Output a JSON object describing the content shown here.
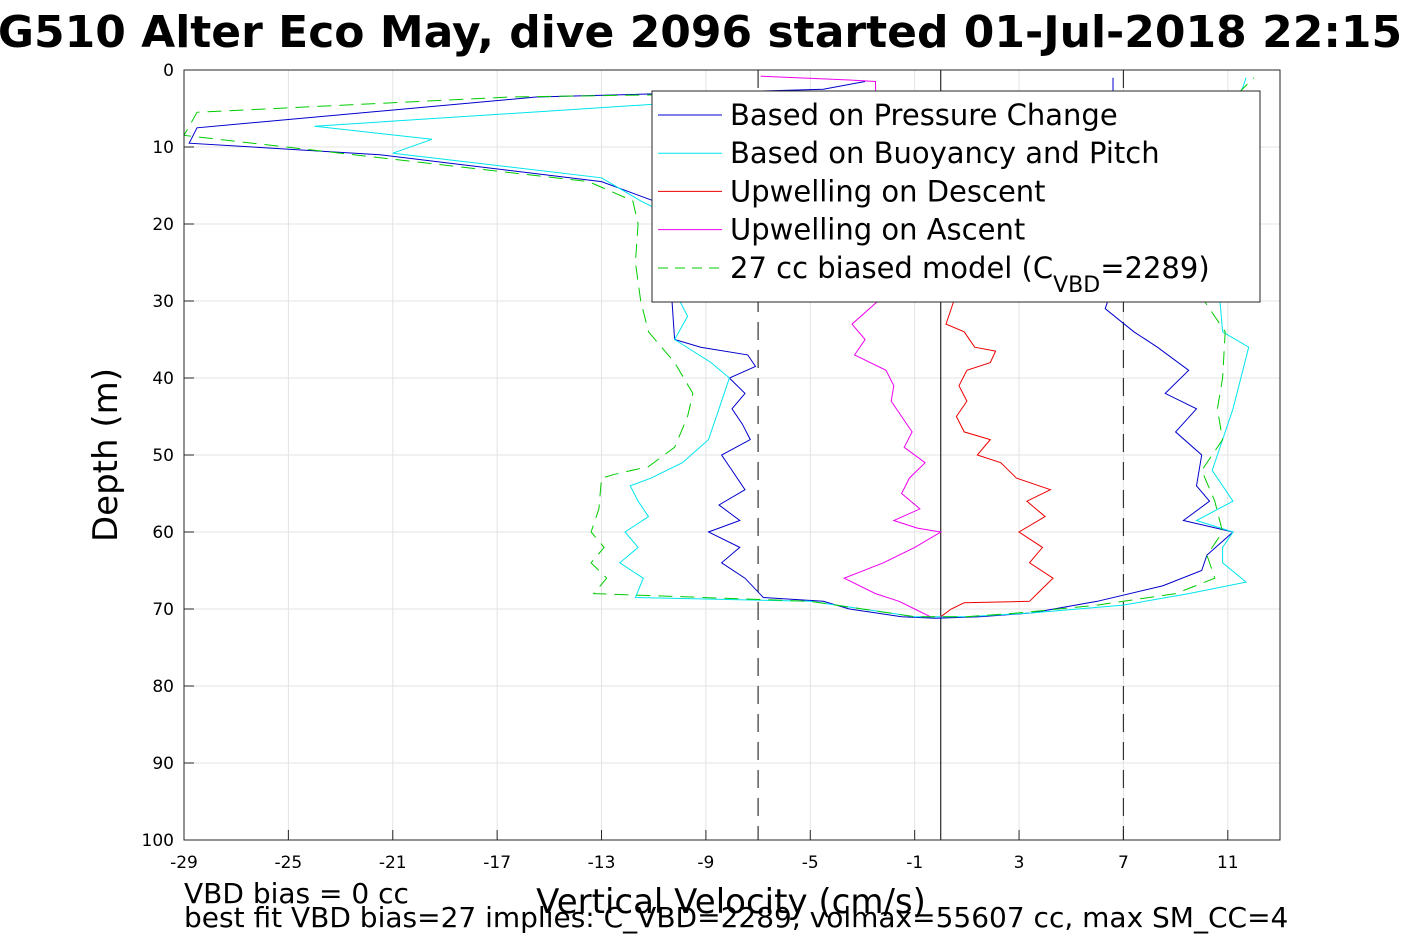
{
  "chart_data": {
    "type": "line",
    "title": "G510 Alter Eco May, dive 2096 started 01-Jul-2018 22:15",
    "xlabel": "Vertical Velocity (cm/s)",
    "ylabel": "Depth (m)",
    "xlim": [
      -29,
      13
    ],
    "ylim": [
      0,
      100
    ],
    "y_reversed": true,
    "x_ticks": [
      -29,
      -25,
      -21,
      -17,
      -13,
      -9,
      -5,
      -1,
      3,
      7,
      11
    ],
    "y_ticks": [
      0,
      10,
      20,
      30,
      40,
      50,
      60,
      70,
      80,
      90,
      100
    ],
    "grid": true,
    "legend_position": "top-right",
    "reference_lines": {
      "solid_x": 0,
      "dashed_x": [
        -7,
        7
      ]
    },
    "series": [
      {
        "name": "Based on Pressure Change",
        "color": "#0000cc",
        "style": "solid",
        "points": [
          [
            -2.9,
            1.5
          ],
          [
            -4.5,
            2.5
          ],
          [
            -15.5,
            3.5
          ],
          [
            -28.5,
            7.5
          ],
          [
            -28.8,
            9.5
          ],
          [
            -21.5,
            11
          ],
          [
            -13,
            14.5
          ],
          [
            -11,
            17
          ],
          [
            -9.5,
            20
          ],
          [
            -10,
            25
          ],
          [
            -10.3,
            30
          ],
          [
            -10.2,
            35
          ],
          [
            -9.2,
            36
          ],
          [
            -7.4,
            37
          ],
          [
            -7.1,
            38.5
          ],
          [
            -8.1,
            40
          ],
          [
            -7.5,
            42
          ],
          [
            -8,
            44
          ],
          [
            -7.6,
            46
          ],
          [
            -7.3,
            48
          ],
          [
            -8.4,
            50
          ],
          [
            -8,
            52
          ],
          [
            -7.5,
            54.5
          ],
          [
            -8.5,
            56.5
          ],
          [
            -7.7,
            58.5
          ],
          [
            -8.9,
            60
          ],
          [
            -7.7,
            62
          ],
          [
            -8.4,
            64
          ],
          [
            -7.5,
            66
          ],
          [
            -6.8,
            68.5
          ],
          [
            -4.5,
            69
          ],
          [
            -3.5,
            70
          ],
          [
            -1.5,
            71
          ],
          [
            -0.2,
            71.2
          ],
          [
            1.5,
            71
          ],
          [
            3.5,
            70.5
          ],
          [
            6,
            69
          ],
          [
            8.5,
            67
          ],
          [
            10,
            65
          ],
          [
            10.2,
            63
          ],
          [
            11.2,
            60
          ],
          [
            9.3,
            58.5
          ],
          [
            10.3,
            56
          ],
          [
            9.8,
            54
          ],
          [
            10,
            50
          ],
          [
            9,
            47
          ],
          [
            9.8,
            44
          ],
          [
            8.6,
            42
          ],
          [
            9.5,
            39
          ],
          [
            8.3,
            36
          ],
          [
            7.4,
            34
          ],
          [
            6.3,
            31
          ],
          [
            6.6,
            28
          ],
          [
            6.6,
            22
          ],
          [
            6.7,
            16
          ],
          [
            6.5,
            10
          ],
          [
            6.6,
            4
          ],
          [
            6.6,
            1
          ]
        ]
      },
      {
        "name": "Based on Buoyancy and Pitch",
        "color": "#00e5ee",
        "style": "solid",
        "points": [
          [
            -2.5,
            3
          ],
          [
            -9,
            4
          ],
          [
            -13.5,
            5
          ],
          [
            -24,
            7.3
          ],
          [
            -19.5,
            9
          ],
          [
            -21,
            10.8
          ],
          [
            -13,
            14
          ],
          [
            -11.5,
            17
          ],
          [
            -9.7,
            20
          ],
          [
            -10,
            23
          ],
          [
            -10.3,
            28
          ],
          [
            -9.7,
            32
          ],
          [
            -10.2,
            35
          ],
          [
            -8.8,
            38
          ],
          [
            -8.1,
            40
          ],
          [
            -8.5,
            44
          ],
          [
            -8.9,
            48
          ],
          [
            -9.9,
            51
          ],
          [
            -11.1,
            53
          ],
          [
            -11.9,
            54
          ],
          [
            -11.6,
            56
          ],
          [
            -11.2,
            58
          ],
          [
            -12.1,
            60
          ],
          [
            -11.6,
            62
          ],
          [
            -12.3,
            64
          ],
          [
            -11.4,
            66
          ],
          [
            -11.7,
            68.5
          ],
          [
            -5,
            69
          ],
          [
            -3,
            70
          ],
          [
            -1,
            71
          ],
          [
            1,
            71
          ],
          [
            3.5,
            70.5
          ],
          [
            7,
            69.5
          ],
          [
            9.5,
            68
          ],
          [
            11.7,
            66.5
          ],
          [
            10.8,
            64
          ],
          [
            10.8,
            62
          ],
          [
            11.2,
            60
          ],
          [
            9.8,
            58.5
          ],
          [
            11.2,
            56
          ],
          [
            10.4,
            52
          ],
          [
            10.8,
            48
          ],
          [
            11.2,
            44
          ],
          [
            11.8,
            36
          ],
          [
            10.8,
            34
          ],
          [
            10.7,
            30
          ],
          [
            10.8,
            25
          ],
          [
            11,
            20
          ],
          [
            11,
            15
          ],
          [
            10.5,
            10
          ],
          [
            11.3,
            5
          ],
          [
            11.7,
            1
          ]
        ]
      },
      {
        "name": "Upwelling on Descent",
        "color": "#ee0000",
        "style": "solid",
        "points": [
          [
            0.5,
            30
          ],
          [
            0.2,
            33
          ],
          [
            0.9,
            34
          ],
          [
            1.3,
            36
          ],
          [
            2.1,
            36.5
          ],
          [
            1.9,
            38
          ],
          [
            1,
            39
          ],
          [
            0.7,
            41
          ],
          [
            1,
            43
          ],
          [
            0.6,
            45
          ],
          [
            0.9,
            47
          ],
          [
            1.9,
            48
          ],
          [
            1.4,
            50
          ],
          [
            2.3,
            51
          ],
          [
            2.9,
            53
          ],
          [
            4.2,
            54.5
          ],
          [
            3.3,
            56
          ],
          [
            4,
            58
          ],
          [
            3,
            60
          ],
          [
            3.9,
            62
          ],
          [
            3.4,
            64
          ],
          [
            4.3,
            66
          ],
          [
            3.7,
            68
          ],
          [
            3.4,
            69
          ],
          [
            0.9,
            69.2
          ],
          [
            0.4,
            70
          ],
          [
            0,
            71
          ]
        ]
      },
      {
        "name": "Upwelling on Ascent",
        "color": "#ee00ee",
        "style": "solid",
        "points": [
          [
            -6.9,
            0.8
          ],
          [
            -3.5,
            1.3
          ],
          [
            -2.5,
            1.5
          ],
          [
            -2.4,
            30
          ],
          [
            -3.4,
            33
          ],
          [
            -2.9,
            35
          ],
          [
            -3.3,
            37
          ],
          [
            -2.1,
            39
          ],
          [
            -1.8,
            41
          ],
          [
            -1.9,
            43
          ],
          [
            -1.5,
            45
          ],
          [
            -1.1,
            47
          ],
          [
            -1.4,
            49
          ],
          [
            -0.6,
            51
          ],
          [
            -1.2,
            53
          ],
          [
            -1.5,
            55
          ],
          [
            -0.8,
            57
          ],
          [
            -1.8,
            58.5
          ],
          [
            -0.9,
            59.5
          ],
          [
            0,
            60
          ],
          [
            -1,
            62
          ],
          [
            -2.2,
            64
          ],
          [
            -3.7,
            66
          ],
          [
            -2.5,
            68
          ],
          [
            -1.6,
            69
          ],
          [
            -1,
            70
          ],
          [
            -0.4,
            71
          ]
        ]
      },
      {
        "name": "27 cc biased model (C",
        "color": "#00cc00",
        "style": "dashed",
        "points": [
          [
            -6.5,
            3
          ],
          [
            -16.5,
            3.5
          ],
          [
            -28.5,
            5.5
          ],
          [
            -29,
            8.5
          ],
          [
            -22.5,
            11
          ],
          [
            -13.5,
            14.5
          ],
          [
            -11.8,
            17
          ],
          [
            -11.6,
            20
          ],
          [
            -11.7,
            25
          ],
          [
            -11.5,
            30
          ],
          [
            -11.2,
            34
          ],
          [
            -10.2,
            38
          ],
          [
            -9.5,
            42
          ],
          [
            -9.7,
            45
          ],
          [
            -10.2,
            49
          ],
          [
            -11.2,
            51.5
          ],
          [
            -12.5,
            52.5
          ],
          [
            -13,
            53
          ],
          [
            -13.1,
            57
          ],
          [
            -13.4,
            60
          ],
          [
            -12.9,
            62
          ],
          [
            -13.4,
            64
          ],
          [
            -12.8,
            66
          ],
          [
            -13.3,
            68
          ],
          [
            -5,
            69
          ],
          [
            -3,
            70
          ],
          [
            -1,
            71
          ],
          [
            1,
            71
          ],
          [
            3,
            70.5
          ],
          [
            6,
            69.5
          ],
          [
            9,
            68
          ],
          [
            10.5,
            66
          ],
          [
            10.2,
            63
          ],
          [
            10.8,
            60
          ],
          [
            10.5,
            56
          ],
          [
            10,
            52
          ],
          [
            10.8,
            48
          ],
          [
            10.6,
            44
          ],
          [
            10.8,
            40
          ],
          [
            10.9,
            34
          ],
          [
            10.1,
            30
          ],
          [
            10.3,
            25
          ],
          [
            10.3,
            20
          ],
          [
            10.2,
            15
          ],
          [
            10.5,
            10
          ],
          [
            10.8,
            5
          ],
          [
            12,
            1
          ]
        ]
      }
    ]
  },
  "legend": {
    "items": [
      {
        "label": "Based on Pressure Change",
        "color": "#0000cc",
        "style": "solid"
      },
      {
        "label": "Based on Buoyancy and Pitch",
        "color": "#00e5ee",
        "style": "solid"
      },
      {
        "label": "Upwelling on Descent",
        "color": "#ee0000",
        "style": "solid"
      },
      {
        "label": "Upwelling on Ascent",
        "color": "#ee00ee",
        "style": "solid"
      }
    ],
    "model_label_prefix": "27 cc biased model (C",
    "model_label_sub": "VBD",
    "model_label_suffix": "=2289)",
    "model_color": "#00cc00"
  },
  "footer": {
    "line1": "VBD bias = 0 cc",
    "line2": "best fit VBD bias=27 implies: C_VBD=2289, volmax=55607 cc, max SM_CC=4"
  }
}
